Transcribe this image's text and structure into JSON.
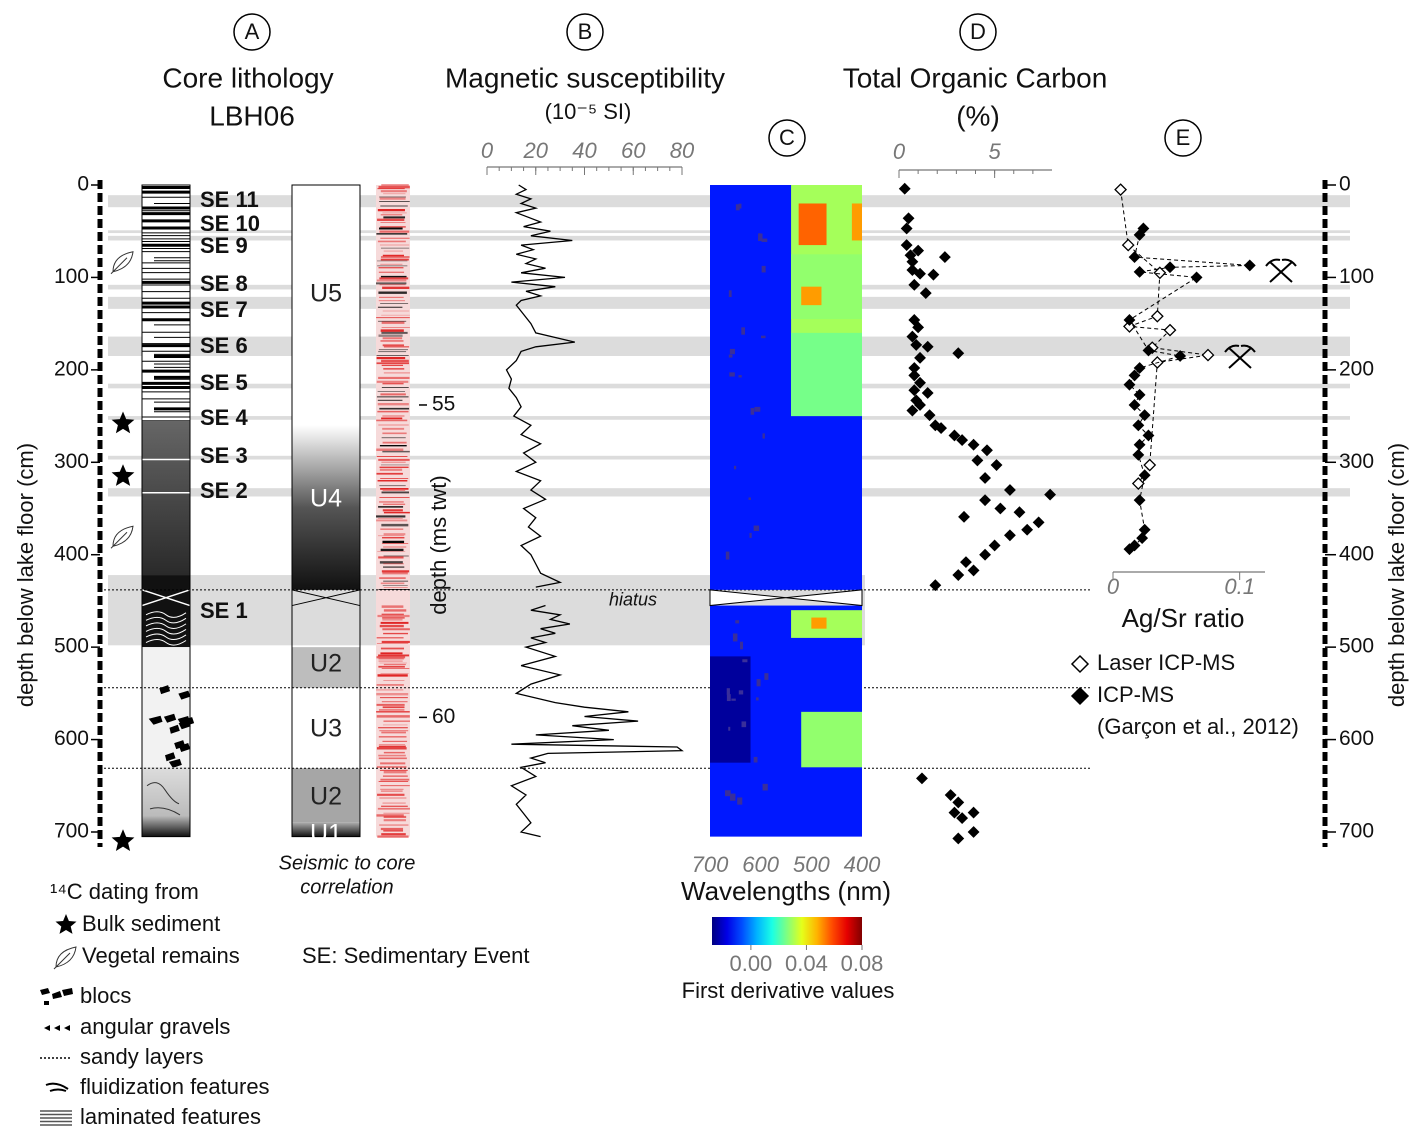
{
  "figure": {
    "panel_letters": [
      "A",
      "B",
      "C",
      "D",
      "E"
    ],
    "lithology": {
      "title": [
        "Core lithology",
        "LBH06"
      ],
      "units": [
        "U5",
        "U4",
        "U2",
        "U3",
        "U2",
        "U1"
      ],
      "seismic_caption": [
        "Seismic to core",
        "correlation"
      ],
      "twt_label": "depth (ms twt)",
      "twt_ticks": [
        {
          "value": 55,
          "depth": 238
        },
        {
          "value": 60,
          "depth": 576
        }
      ],
      "dating": {
        "bulk": [
          258,
          315,
          710
        ],
        "vegetal": [
          83,
          380
        ]
      }
    },
    "events": [
      {
        "label": "SE 11",
        "depth": [
          11,
          24
        ]
      },
      {
        "label": "SE 10",
        "depth": [
          49,
          52
        ]
      },
      {
        "label": "SE 9",
        "depth": [
          55,
          60
        ]
      },
      {
        "label": "SE 8",
        "depth": [
          108,
          113
        ]
      },
      {
        "label": "SE 7",
        "depth": [
          121,
          134
        ]
      },
      {
        "label": "SE 6",
        "depth": [
          164,
          185
        ]
      },
      {
        "label": "SE 5",
        "depth": [
          215,
          220
        ]
      },
      {
        "label": "SE 4",
        "depth": [
          250,
          254
        ]
      },
      {
        "label": "SE 3",
        "depth": [
          293,
          297
        ]
      },
      {
        "label": "SE 2",
        "depth": [
          328,
          337
        ]
      },
      {
        "label": "SE 1",
        "depth": [
          422,
          498
        ]
      }
    ],
    "hiatus": {
      "label": "hiatus",
      "depth": 438
    },
    "boundaries": [
      544,
      631
    ],
    "depth_axis": {
      "label": "depth below lake floor (cm)",
      "ylim": [
        0,
        700
      ],
      "yticks": [
        0,
        100,
        200,
        300,
        400,
        500,
        600,
        700
      ]
    },
    "legend": {
      "dating_title": "¹⁴C dating from",
      "bulk": "Bulk sediment",
      "vegetal": "Vegetal remains",
      "se": "SE: Sedimentary Event",
      "blocs": "blocs",
      "gravels": "angular gravels",
      "sandy": "sandy layers",
      "fluid": "fluidization features",
      "laminated": "laminated features"
    }
  },
  "chart_data": [
    {
      "type": "line",
      "title": "Magnetic susceptibility",
      "subtitle": "(10⁻⁵ SI)",
      "xlim": [
        0,
        80
      ],
      "xticks": [
        0,
        20,
        40,
        60,
        80
      ],
      "depth": [
        0,
        5,
        10,
        15,
        20,
        25,
        30,
        35,
        40,
        45,
        50,
        55,
        60,
        65,
        70,
        75,
        80,
        85,
        90,
        95,
        100,
        105,
        110,
        115,
        120,
        125,
        130,
        140,
        150,
        160,
        165,
        170,
        175,
        180,
        190,
        200,
        210,
        220,
        230,
        240,
        250,
        260,
        270,
        280,
        290,
        300,
        310,
        320,
        330,
        340,
        350,
        360,
        370,
        380,
        390,
        400,
        410,
        420,
        430,
        435,
        445,
        455,
        460,
        465,
        470,
        475,
        480,
        485,
        490,
        495,
        500,
        510,
        520,
        530,
        540,
        550,
        560,
        565,
        570,
        575,
        580,
        585,
        590,
        595,
        600,
        605,
        608,
        612,
        615,
        620,
        625,
        630,
        640,
        650,
        660,
        670,
        680,
        690,
        700,
        705
      ],
      "series": [
        {
          "color": "#000000",
          "values": [
            13,
            16,
            12,
            18,
            14,
            20,
            12,
            17,
            22,
            15,
            26,
            18,
            35,
            14,
            19,
            12,
            20,
            16,
            24,
            14,
            32,
            10,
            28,
            16,
            22,
            14,
            12,
            15,
            18,
            20,
            28,
            36,
            20,
            14,
            12,
            8,
            10,
            9,
            12,
            14,
            11,
            18,
            14,
            22,
            15,
            20,
            12,
            22,
            18,
            24,
            15,
            20,
            17,
            22,
            14,
            18,
            20,
            22,
            30,
            20,
            null,
            24,
            18,
            30,
            26,
            34,
            22,
            28,
            18,
            24,
            16,
            28,
            14,
            30,
            18,
            12,
            28,
            40,
            58,
            40,
            62,
            35,
            50,
            20,
            52,
            10,
            78,
            80,
            25,
            18,
            24,
            14,
            20,
            10,
            16,
            12,
            15,
            18,
            14,
            22
          ]
        }
      ]
    },
    {
      "type": "heatmap",
      "xlabel": "Wavelengths (nm)",
      "xlim": [
        700,
        400
      ],
      "xticks": [
        700,
        600,
        500,
        400
      ],
      "cells": [
        {
          "wl": [
            700,
            400
          ],
          "depth": [
            0,
            438
          ],
          "value": -0.012
        },
        {
          "wl": [
            700,
            400
          ],
          "depth": [
            455,
            705
          ],
          "value": -0.012
        },
        {
          "wl": [
            540,
            400
          ],
          "depth": [
            0,
            250
          ],
          "value": 0.03
        },
        {
          "wl": [
            525,
            470
          ],
          "depth": [
            20,
            65
          ],
          "value": 0.056
        },
        {
          "wl": [
            420,
            400
          ],
          "depth": [
            20,
            60
          ],
          "value": 0.05
        },
        {
          "wl": [
            540,
            400
          ],
          "depth": [
            75,
            145
          ],
          "value": 0.028
        },
        {
          "wl": [
            520,
            480
          ],
          "depth": [
            110,
            130
          ],
          "value": 0.05
        },
        {
          "wl": [
            540,
            400
          ],
          "depth": [
            160,
            250
          ],
          "value": 0.025
        },
        {
          "wl": [
            540,
            400
          ],
          "depth": [
            460,
            490
          ],
          "value": 0.03
        },
        {
          "wl": [
            500,
            470
          ],
          "depth": [
            468,
            480
          ],
          "value": 0.05
        },
        {
          "wl": [
            700,
            620
          ],
          "depth": [
            510,
            625
          ],
          "value": -0.025
        },
        {
          "wl": [
            520,
            400
          ],
          "depth": [
            570,
            630
          ],
          "value": 0.028
        }
      ],
      "colorbar": {
        "label": "First derivative values",
        "clim": [
          -0.028,
          0.08
        ],
        "ticks": [
          {
            "value": 0,
            "label": "0.00"
          },
          0.04,
          0.08
        ]
      }
    },
    {
      "type": "scatter",
      "title": "Total Organic Carbon",
      "subtitle": "(%)",
      "xlim": [
        0,
        8
      ],
      "xticks": [
        0,
        5
      ],
      "depth": [
        4,
        36,
        47,
        65,
        76,
        83,
        71,
        78,
        92,
        96,
        97,
        108,
        117,
        146,
        154,
        164,
        173,
        175,
        182,
        187,
        198,
        206,
        214,
        222,
        225,
        233,
        244,
        238,
        249,
        260,
        263,
        271,
        276,
        281,
        287,
        298,
        303,
        317,
        330,
        335,
        341,
        350,
        354,
        359,
        365,
        373,
        379,
        390,
        400,
        408,
        417,
        422,
        433,
        642,
        660,
        668,
        679,
        685,
        700,
        707,
        679
      ],
      "series": [
        {
          "color": "#000000",
          "values": [
            0.3,
            0.5,
            0.4,
            0.4,
            0.6,
            0.7,
            1.0,
            2.4,
            0.7,
            1.1,
            1.8,
            0.8,
            1.4,
            0.8,
            1.0,
            0.7,
            0.9,
            1.5,
            3.1,
            1.1,
            0.8,
            0.8,
            1.1,
            0.8,
            1.5,
            0.9,
            0.7,
            1.1,
            1.6,
            1.9,
            2.2,
            2.9,
            3.3,
            3.9,
            4.6,
            4.1,
            5.1,
            4.5,
            5.8,
            7.9,
            4.5,
            5.3,
            6.3,
            3.4,
            7.3,
            6.7,
            5.8,
            5.0,
            4.5,
            3.5,
            3.9,
            3.1,
            1.9,
            1.2,
            2.7,
            3.1,
            3.9,
            3.3,
            3.9,
            3.1,
            2.9
          ]
        }
      ]
    },
    {
      "type": "scatter",
      "xlabel": "Ag/Sr ratio",
      "xlim": [
        0,
        0.12
      ],
      "xticks": [
        0,
        0.1
      ],
      "source": "(Garçon et al., 2012)",
      "series": [
        {
          "name": "Laser ICP-MS",
          "marker": "open",
          "color": "#000000",
          "depth": [
            5,
            65,
            95,
            142,
            153,
            157,
            176,
            184,
            192,
            303,
            323
          ],
          "values": [
            0.006,
            0.012,
            0.037,
            0.035,
            0.013,
            0.045,
            0.031,
            0.075,
            0.035,
            0.029,
            0.02
          ]
        },
        {
          "name": "ICP-MS",
          "marker": "filled",
          "color": "#000000",
          "depth": [
            47,
            54,
            78,
            87,
            89,
            94,
            100,
            146,
            179,
            185,
            198,
            206,
            216,
            227,
            238,
            249,
            260,
            271,
            281,
            292,
            314,
            341,
            373,
            382,
            390,
            394
          ],
          "values": [
            0.024,
            0.021,
            0.017,
            0.108,
            0.045,
            0.021,
            0.066,
            0.013,
            0.028,
            0.053,
            0.021,
            0.017,
            0.013,
            0.021,
            0.017,
            0.025,
            0.02,
            0.028,
            0.021,
            0.02,
            0.025,
            0.021,
            0.025,
            0.023,
            0.017,
            0.013
          ]
        }
      ]
    }
  ]
}
